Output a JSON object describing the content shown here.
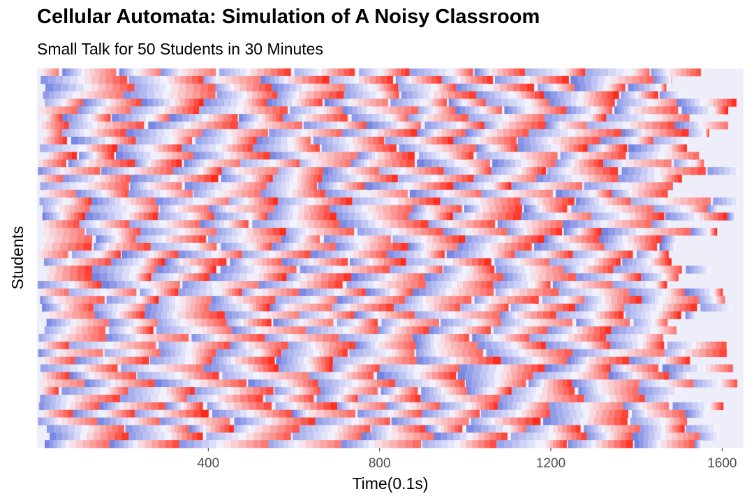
{
  "chart_data": {
    "type": "heatmap",
    "title": "Cellular Automata: Simulation of A Noisy Classroom",
    "subtitle": "Small Talk for 50 Students in 30 Minutes",
    "xlabel": "Time(0.1s)",
    "ylabel": "Students",
    "x_ticks": [
      400,
      800,
      1200,
      1600
    ],
    "xlim": [
      0,
      1650
    ],
    "students": 50,
    "time_steps": 1650,
    "grid": false,
    "legend": "none",
    "cell_pattern": "each student alternates between talking segments (red, rising intensity) and quiet segments (blue, fading intensity); lavender marks no activity after a student's run ends",
    "colors": {
      "talk_high": "#ff2a1a",
      "quiet_high": "#5a6bdb",
      "neutral": "#f7f6ff",
      "idle": "#eeeefb"
    }
  }
}
